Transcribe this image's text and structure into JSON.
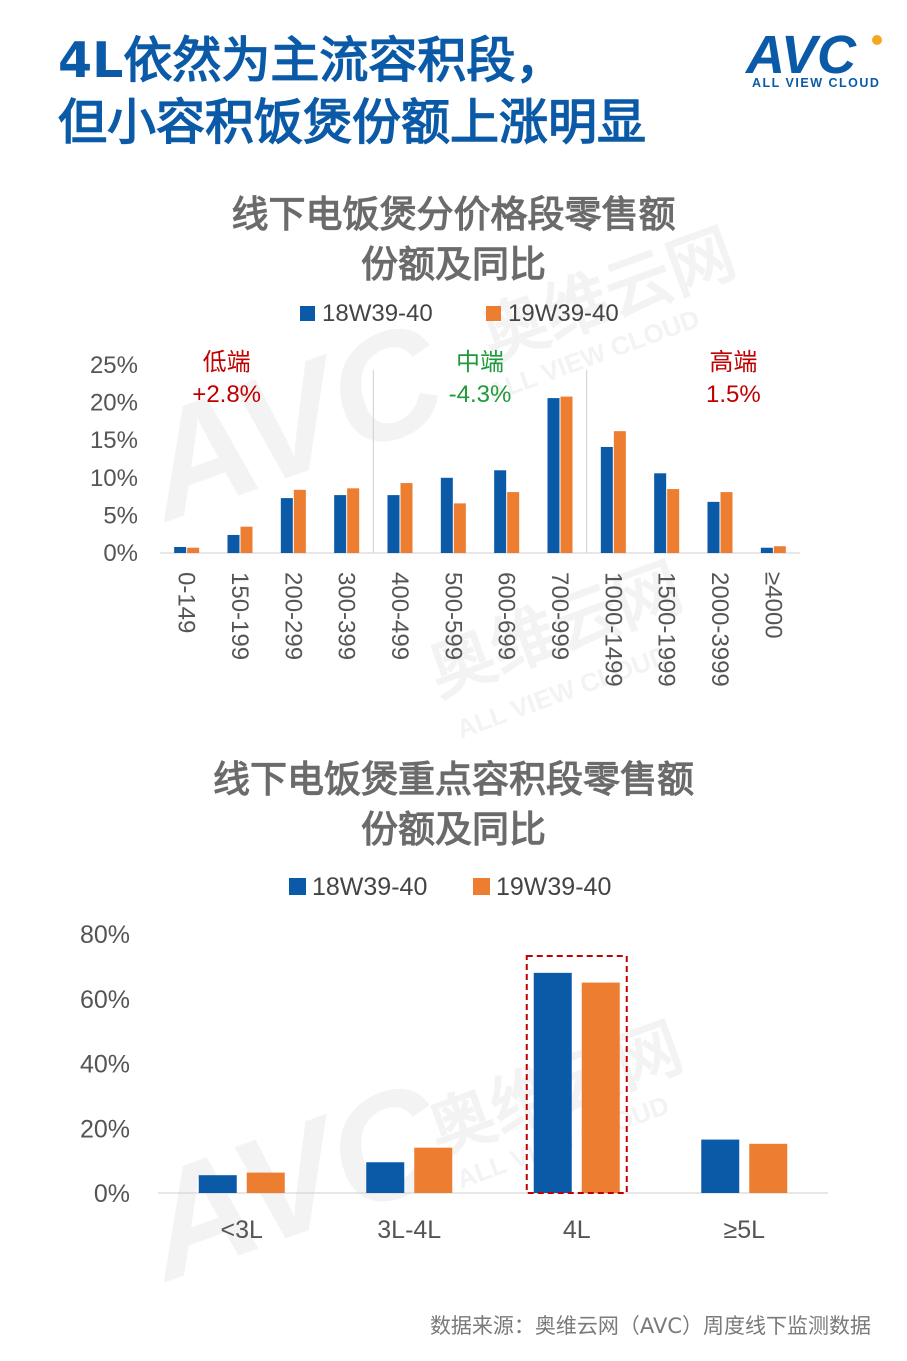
{
  "headline": {
    "line1": "4L依然为主流容积段，",
    "line2": "但小容积饭煲份额上涨明显"
  },
  "logo": {
    "mark": "AVC",
    "tagline": "ALL VIEW CLOUD"
  },
  "watermark": {
    "brand": "AVC",
    "cn": "奥维云网",
    "en": "ALL VIEW CLOUD"
  },
  "colors": {
    "series1": "#0b5aa8",
    "series2": "#ed7d31",
    "title_blue": "#0b5aa8",
    "red": "#c00000",
    "green": "#1f9a3a"
  },
  "chart1": {
    "title_line1": "线下电饭煲分价格段零售额",
    "title_line2": "份额及同比",
    "segments": [
      {
        "name": "低端",
        "change": "+2.8%",
        "color": "#c00000"
      },
      {
        "name": "中端",
        "change": "-4.3%",
        "color": "#1f9a3a"
      },
      {
        "name": "高端",
        "change": "1.5%",
        "color": "#c00000"
      }
    ]
  },
  "chart2": {
    "title_line1": "线下电饭煲重点容积段零售额",
    "title_line2": "份额及同比"
  },
  "footer": "数据来源：奥维云网（AVC）周度线下监测数据",
  "chart_data": [
    {
      "type": "bar",
      "categories": [
        "0-149",
        "150-199",
        "200-299",
        "300-399",
        "400-499",
        "500-599",
        "600-699",
        "700-999",
        "1000-1499",
        "1500-1999",
        "2000-3999",
        "≥4000"
      ],
      "series": [
        {
          "name": "18W39-40",
          "values": [
            0.8,
            2.4,
            7.3,
            7.7,
            7.7,
            10.0,
            11.0,
            20.6,
            14.1,
            10.6,
            6.8,
            0.7
          ]
        },
        {
          "name": "19W39-40",
          "values": [
            0.7,
            3.5,
            8.4,
            8.6,
            9.3,
            6.6,
            8.1,
            20.8,
            16.2,
            8.5,
            8.1,
            0.9
          ]
        }
      ],
      "yticks": [
        "0%",
        "5%",
        "10%",
        "15%",
        "20%",
        "25%"
      ],
      "ylim": [
        0,
        25
      ],
      "segment_dividers_after": [
        3,
        7
      ],
      "legend": "top",
      "grid": false
    },
    {
      "type": "bar",
      "categories": [
        "<3L",
        "3L-4L",
        "4L",
        "≥5L"
      ],
      "series": [
        {
          "name": "18W39-40",
          "values": [
            5.5,
            9.5,
            68.0,
            16.5
          ]
        },
        {
          "name": "19W39-40",
          "values": [
            6.3,
            14.0,
            65.0,
            15.2
          ]
        }
      ],
      "yticks": [
        "0%",
        "20%",
        "40%",
        "60%",
        "80%"
      ],
      "ylim": [
        0,
        80
      ],
      "highlight_category": "4L",
      "legend": "top",
      "grid": false
    }
  ]
}
